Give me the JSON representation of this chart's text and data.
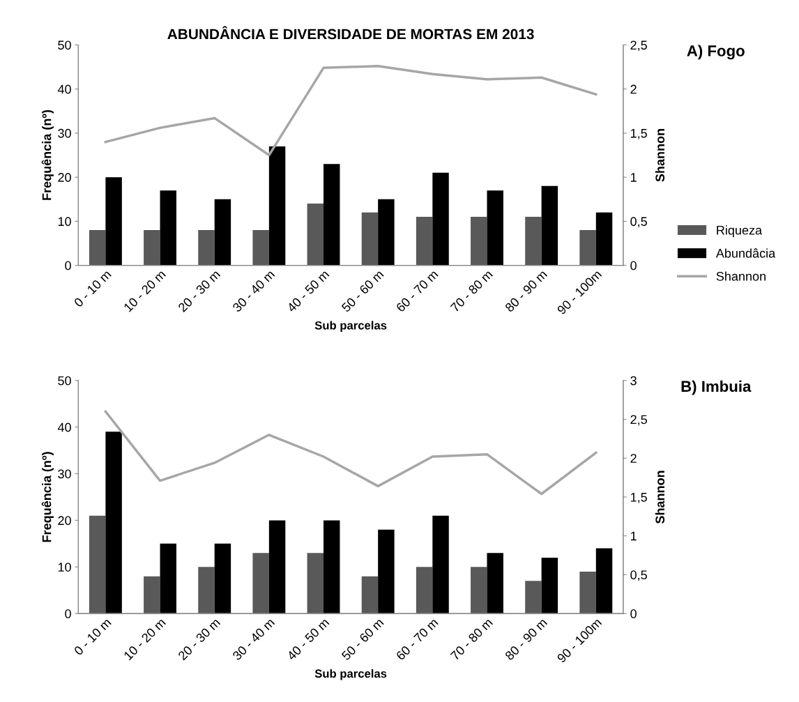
{
  "chart_data": [
    {
      "type": "bar",
      "title": "ABUNDÂNCIA E DIVERSIDADE DE MORTAS EM 2013",
      "xlabel": "Sub parcelas",
      "ylabel": "Frequência (nº)",
      "y2label": "Shannon",
      "annotations": [
        "A) Fogo"
      ],
      "categories": [
        "0 - 10 m",
        "10 - 20 m",
        "20 - 30 m",
        "30 - 40 m",
        "40 - 50 m",
        "50 - 60 m",
        "60 - 70 m",
        "70 - 80 m",
        "80 - 90 m",
        "90 - 100m"
      ],
      "series": [
        {
          "name": "Riqueza",
          "color": "#595959",
          "values": [
            8,
            8,
            8,
            8,
            14,
            12,
            11,
            11,
            11,
            8
          ]
        },
        {
          "name": "Abundâcia",
          "color": "#000000",
          "values": [
            20,
            17,
            15,
            27,
            23,
            15,
            21,
            17,
            18,
            12
          ]
        },
        {
          "name": "Shannon",
          "color": "#a6a6a6",
          "type": "line",
          "axis": "y2",
          "values": [
            1.4,
            1.56,
            1.67,
            1.25,
            2.24,
            2.26,
            2.17,
            2.11,
            2.13,
            1.94
          ]
        }
      ],
      "ylim": [
        0,
        50
      ],
      "yticks": [
        0,
        10,
        20,
        30,
        40,
        50
      ],
      "y2lim": [
        0,
        2.5
      ],
      "y2ticks": [
        0,
        {
          "value": 0.5,
          "label": "0,5"
        },
        1,
        {
          "value": 1.5,
          "label": "1,5"
        },
        2,
        {
          "value": 2.5,
          "label": "2,5"
        }
      ],
      "grid": false,
      "legend": "right",
      "marker": "none"
    },
    {
      "type": "bar",
      "xlabel": "Sub parcelas",
      "ylabel": "Frequência (nº)",
      "y2label": "Shannon",
      "annotations": [
        "B) Imbuia"
      ],
      "categories": [
        "0 - 10 m",
        "10 - 20 m",
        "20 - 30 m",
        "30 - 40 m",
        "40 - 50 m",
        "50 - 60 m",
        "60 - 70 m",
        "70 - 80 m",
        "80 - 90 m",
        "90 - 100m"
      ],
      "series": [
        {
          "color": "#595959",
          "values": [
            21,
            8,
            10,
            13,
            13,
            8,
            10,
            10,
            7,
            9
          ]
        },
        {
          "color": "#000000",
          "values": [
            39,
            15,
            15,
            20,
            20,
            18,
            21,
            13,
            12,
            14
          ]
        },
        {
          "color": "#a6a6a6",
          "type": "line",
          "axis": "y2",
          "values": [
            2.6,
            1.71,
            1.94,
            2.3,
            2.02,
            1.64,
            2.02,
            2.05,
            1.54,
            2.07
          ]
        }
      ],
      "ylim": [
        0,
        50
      ],
      "yticks": [
        0,
        10,
        20,
        30,
        40,
        50
      ],
      "y2lim": [
        0,
        3
      ],
      "y2ticks": [
        0,
        {
          "value": 0.5,
          "label": "0,5"
        },
        1,
        {
          "value": 1.5,
          "label": "1,5"
        },
        2,
        {
          "value": 2.5,
          "label": "2,5"
        },
        3
      ],
      "grid": false,
      "legend": false,
      "marker": "none"
    }
  ]
}
